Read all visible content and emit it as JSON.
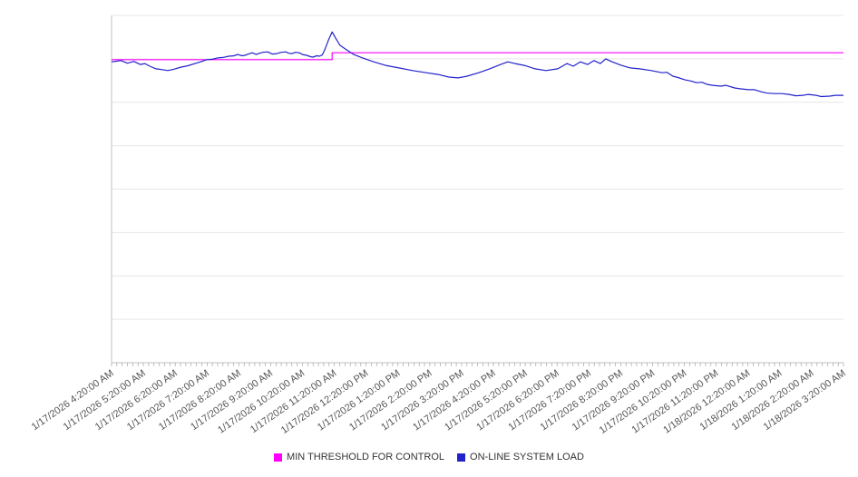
{
  "chart": {
    "legend": [
      {
        "label": "MIN THRESHOLD FOR CONTROL",
        "color": "#ff00ff"
      },
      {
        "label": "ON-LINE SYSTEM LOAD",
        "color": "#2222cc"
      }
    ]
  },
  "chart_data": {
    "type": "line",
    "title": "",
    "xlabel": "",
    "ylabel": "",
    "ylim": [
      0,
      80
    ],
    "grid": true,
    "legend_position": "bottom",
    "colors": {
      "grid": "#e7e7e7",
      "axis": "#c0c0c0",
      "tick": "#999999",
      "label": "#555555",
      "legend_text": "#333333"
    },
    "x_labels": [
      "1/17/2026 4:20:00 AM",
      "1/17/2026 5:20:00 AM",
      "1/17/2026 6:20:00 AM",
      "1/17/2026 7:20:00 AM",
      "1/17/2026 8:20:00 AM",
      "1/17/2026 9:20:00 AM",
      "1/17/2026 10:20:00 AM",
      "1/17/2026 11:20:00 AM",
      "1/17/2026 12:20:00 PM",
      "1/17/2026 1:20:00 PM",
      "1/17/2026 2:20:00 PM",
      "1/17/2026 3:20:00 PM",
      "1/17/2026 4:20:00 PM",
      "1/17/2026 5:20:00 PM",
      "1/17/2026 6:20:00 PM",
      "1/17/2026 7:20:00 PM",
      "1/17/2026 8:20:00 PM",
      "1/17/2026 9:20:00 PM",
      "1/17/2026 10:20:00 PM",
      "1/17/2026 11:20:00 PM",
      "1/18/2026 12:20:00 AM",
      "1/18/2026 1:20:00 AM",
      "1/18/2026 2:20:00 AM",
      "1/18/2026 3:20:00 AM"
    ],
    "series": [
      {
        "name": "MIN THRESHOLD FOR CONTROL",
        "color": "#ff00ff",
        "points": [
          [
            0,
            69.8
          ],
          [
            6.93,
            69.8
          ],
          [
            6.93,
            71.4
          ],
          [
            23,
            71.4
          ]
        ]
      },
      {
        "name": "ON-LINE SYSTEM LOAD",
        "color": "#2222cc",
        "points": [
          [
            0,
            69.3
          ],
          [
            0.3,
            69.6
          ],
          [
            0.5,
            69.0
          ],
          [
            0.7,
            69.4
          ],
          [
            0.9,
            68.7
          ],
          [
            1.05,
            68.9
          ],
          [
            1.2,
            68.3
          ],
          [
            1.4,
            67.7
          ],
          [
            1.6,
            67.5
          ],
          [
            1.77,
            67.3
          ],
          [
            1.95,
            67.6
          ],
          [
            2.19,
            68.1
          ],
          [
            2.4,
            68.4
          ],
          [
            2.62,
            68.9
          ],
          [
            2.8,
            69.3
          ],
          [
            2.99,
            69.8
          ],
          [
            3.15,
            69.9
          ],
          [
            3.33,
            70.2
          ],
          [
            3.5,
            70.3
          ],
          [
            3.68,
            70.6
          ],
          [
            3.85,
            70.7
          ],
          [
            3.96,
            71.0
          ],
          [
            4.1,
            70.7
          ],
          [
            4.19,
            70.8
          ],
          [
            4.3,
            71.1
          ],
          [
            4.42,
            71.4
          ],
          [
            4.55,
            71.0
          ],
          [
            4.62,
            71.2
          ],
          [
            4.75,
            71.5
          ],
          [
            4.9,
            71.6
          ],
          [
            5.05,
            71.1
          ],
          [
            5.19,
            71.2
          ],
          [
            5.33,
            71.5
          ],
          [
            5.47,
            71.6
          ],
          [
            5.57,
            71.3
          ],
          [
            5.67,
            71.2
          ],
          [
            5.78,
            71.5
          ],
          [
            5.9,
            71.4
          ],
          [
            6.0,
            71.0
          ],
          [
            6.13,
            70.8
          ],
          [
            6.25,
            70.5
          ],
          [
            6.33,
            70.4
          ],
          [
            6.45,
            70.7
          ],
          [
            6.53,
            70.6
          ],
          [
            6.62,
            70.9
          ],
          [
            6.7,
            72.1
          ],
          [
            6.81,
            74.2
          ],
          [
            6.93,
            76.2
          ],
          [
            7.04,
            74.8
          ],
          [
            7.18,
            73.1
          ],
          [
            7.38,
            72.1
          ],
          [
            7.61,
            71.0
          ],
          [
            7.89,
            70.2
          ],
          [
            8.24,
            69.3
          ],
          [
            8.61,
            68.5
          ],
          [
            9.03,
            67.9
          ],
          [
            9.46,
            67.3
          ],
          [
            9.89,
            66.8
          ],
          [
            10.26,
            66.4
          ],
          [
            10.6,
            65.8
          ],
          [
            10.89,
            65.6
          ],
          [
            11.17,
            66.0
          ],
          [
            11.54,
            66.8
          ],
          [
            11.88,
            67.7
          ],
          [
            12.23,
            68.7
          ],
          [
            12.45,
            69.3
          ],
          [
            12.68,
            68.9
          ],
          [
            12.97,
            68.5
          ],
          [
            13.31,
            67.7
          ],
          [
            13.65,
            67.3
          ],
          [
            14.02,
            67.7
          ],
          [
            14.31,
            68.9
          ],
          [
            14.51,
            68.3
          ],
          [
            14.73,
            69.3
          ],
          [
            14.96,
            68.7
          ],
          [
            15.16,
            69.6
          ],
          [
            15.36,
            68.9
          ],
          [
            15.53,
            70.0
          ],
          [
            15.73,
            69.3
          ],
          [
            16.02,
            68.5
          ],
          [
            16.3,
            67.9
          ],
          [
            16.59,
            67.7
          ],
          [
            16.96,
            67.3
          ],
          [
            17.3,
            66.8
          ],
          [
            17.45,
            66.9
          ],
          [
            17.64,
            66.0
          ],
          [
            17.8,
            65.7
          ],
          [
            18.01,
            65.2
          ],
          [
            18.2,
            64.9
          ],
          [
            18.38,
            64.5
          ],
          [
            18.55,
            64.6
          ],
          [
            18.72,
            64.1
          ],
          [
            18.9,
            63.9
          ],
          [
            19.15,
            63.7
          ],
          [
            19.3,
            63.9
          ],
          [
            19.58,
            63.3
          ],
          [
            19.75,
            63.1
          ],
          [
            20.01,
            62.9
          ],
          [
            20.2,
            62.9
          ],
          [
            20.43,
            62.4
          ],
          [
            20.6,
            62.1
          ],
          [
            20.86,
            62.0
          ],
          [
            21.05,
            62.0
          ],
          [
            21.29,
            61.8
          ],
          [
            21.5,
            61.5
          ],
          [
            21.72,
            61.6
          ],
          [
            21.9,
            61.8
          ],
          [
            22.14,
            61.6
          ],
          [
            22.3,
            61.3
          ],
          [
            22.57,
            61.4
          ],
          [
            22.75,
            61.6
          ],
          [
            23,
            61.6
          ]
        ]
      }
    ]
  }
}
